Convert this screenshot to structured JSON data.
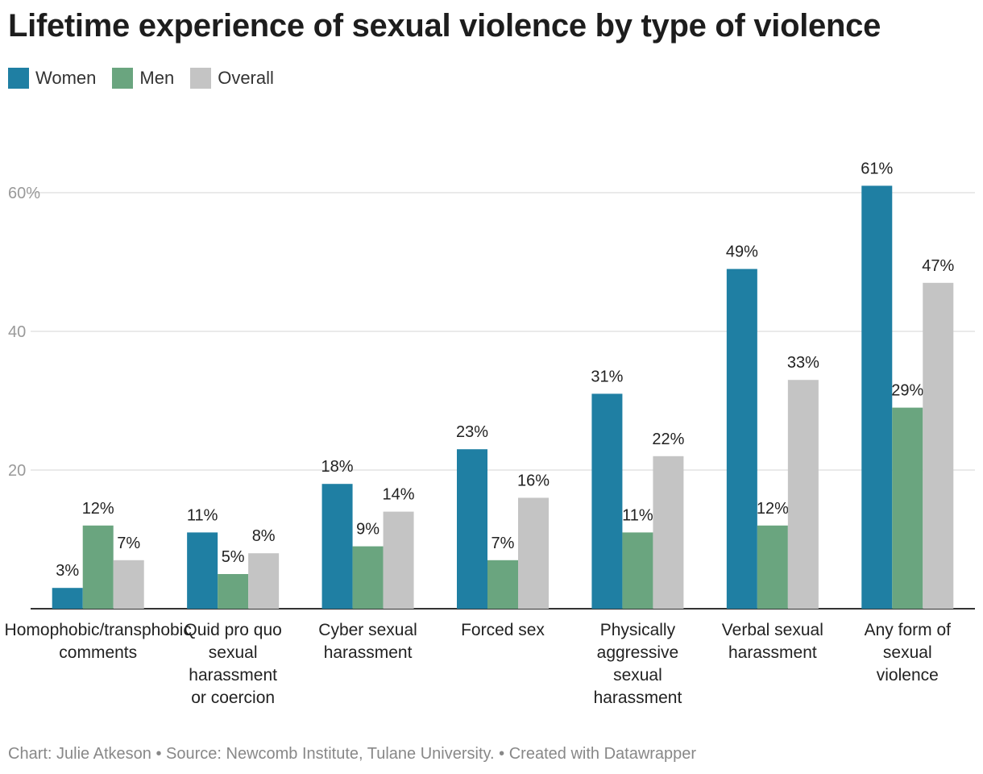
{
  "title": "Lifetime experience of sexual violence by type of violence",
  "footer": {
    "byline": "Chart: Julie Atkeson",
    "separator": "•",
    "source": "Source: Newcomb Institute, Tulane University.",
    "credit": "Created with Datawrapper"
  },
  "colors": {
    "Women": "#1f7fa3",
    "Men": "#6aa57f",
    "Overall": "#c4c4c4",
    "grid": "#e3e3e3",
    "axis": "#333333"
  },
  "chart_data": {
    "type": "bar",
    "title": "Lifetime experience of sexual violence by type of violence",
    "xlabel": "",
    "ylabel": "",
    "ylim": [
      0,
      65
    ],
    "grid": true,
    "legend_position": "top-left",
    "yticks": [
      {
        "value": 20,
        "label": "20"
      },
      {
        "value": 40,
        "label": "40"
      },
      {
        "value": 60,
        "label": "60%"
      }
    ],
    "categories": [
      [
        "Homophobic/transphobic",
        "comments"
      ],
      [
        "Quid pro quo",
        "sexual",
        "harassment",
        "or coercion"
      ],
      [
        "Cyber sexual",
        "harassment"
      ],
      [
        "Forced sex"
      ],
      [
        "Physically",
        "aggressive",
        "sexual",
        "harassment"
      ],
      [
        "Verbal sexual",
        "harassment"
      ],
      [
        "Any form of",
        "sexual",
        "violence"
      ]
    ],
    "series": [
      {
        "name": "Women",
        "values": [
          3,
          11,
          18,
          23,
          31,
          49,
          61
        ]
      },
      {
        "name": "Men",
        "values": [
          12,
          5,
          9,
          7,
          11,
          12,
          29
        ]
      },
      {
        "name": "Overall",
        "values": [
          7,
          8,
          14,
          16,
          22,
          33,
          47
        ]
      }
    ]
  }
}
